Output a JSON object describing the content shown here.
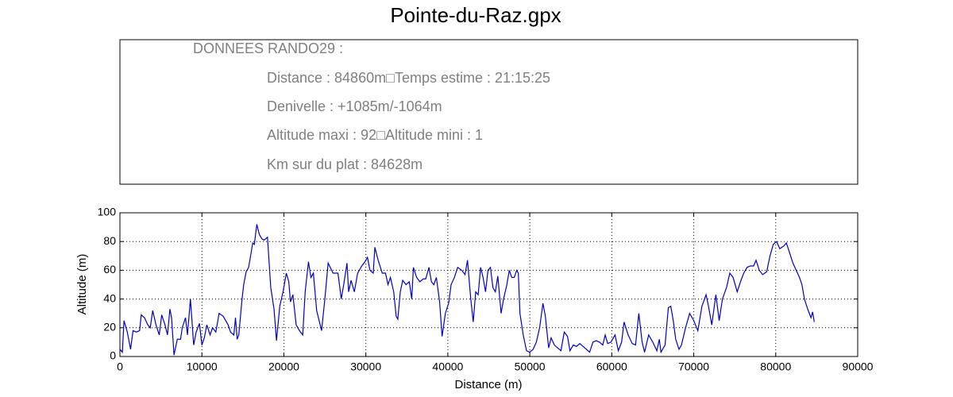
{
  "info_box": {
    "heading": "DONNEES RANDO29  :",
    "lines": [
      "Distance : 84860m□Temps estime : 21:15:25",
      "Denivelle : +1085m/-1064m",
      "Altitude maxi : 92□Altitude mini : 1",
      "Km sur du plat : 84628m"
    ]
  },
  "chart_data": {
    "type": "line",
    "title": "Pointe-du-Raz.gpx",
    "x_label": "Distance (m)",
    "y_label": "Altitude (m)",
    "color": "#0000cc",
    "grid": true,
    "xlim": [
      0,
      90000
    ],
    "xticks": [
      0,
      10000,
      20000,
      30000,
      40000,
      50000,
      60000,
      70000,
      80000,
      90000
    ],
    "ylim": [
      0,
      100
    ],
    "yticks": [
      0,
      20,
      40,
      60,
      80,
      100
    ],
    "x": [
      0,
      300,
      500,
      900,
      1300,
      1600,
      2000,
      2400,
      2600,
      3000,
      3400,
      3700,
      4000,
      4400,
      4800,
      5100,
      5500,
      5800,
      6100,
      6300,
      6600,
      7000,
      7400,
      7600,
      8000,
      8240,
      8600,
      9000,
      9300,
      9700,
      10000,
      10300,
      10600,
      11000,
      11300,
      11700,
      12100,
      12600,
      13200,
      13500,
      13900,
      14100,
      14300,
      14500,
      14900,
      15100,
      15400,
      15700,
      16000,
      16200,
      16400,
      16700,
      17000,
      17300,
      17600,
      18000,
      18400,
      18800,
      19100,
      19500,
      19900,
      20300,
      20600,
      20800,
      21100,
      21500,
      21900,
      22300,
      22600,
      23000,
      23300,
      23600,
      24000,
      24300,
      24600,
      25000,
      25400,
      26000,
      26600,
      27000,
      27300,
      27700,
      27900,
      28200,
      28600,
      29000,
      29500,
      29900,
      30200,
      30500,
      30900,
      31100,
      31500,
      32000,
      32400,
      32700,
      33000,
      33400,
      33700,
      33900,
      34200,
      34500,
      34900,
      35300,
      35600,
      35800,
      36200,
      36600,
      37000,
      37300,
      37700,
      38000,
      38300,
      38600,
      39000,
      39300,
      39700,
      40100,
      40400,
      40800,
      41200,
      41700,
      42100,
      42400,
      42800,
      43100,
      43400,
      43700,
      44000,
      44300,
      44600,
      44900,
      45200,
      45500,
      45800,
      46100,
      46500,
      46800,
      47200,
      47500,
      47800,
      48100,
      48400,
      48600,
      48800,
      49200,
      49600,
      50000,
      50400,
      50800,
      51200,
      51600,
      51900,
      52300,
      52600,
      53000,
      53400,
      53800,
      54200,
      54600,
      54900,
      55300,
      55700,
      56100,
      56500,
      56900,
      57300,
      57700,
      58100,
      58500,
      58900,
      59200,
      59500,
      59900,
      60400,
      60800,
      61200,
      61500,
      62000,
      62500,
      62900,
      63300,
      63700,
      64000,
      64500,
      65000,
      65500,
      65800,
      66000,
      66500,
      66900,
      67200,
      67500,
      67800,
      68200,
      68500,
      69000,
      69500,
      70000,
      70500,
      71000,
      71500,
      71800,
      72200,
      72700,
      73100,
      73500,
      74000,
      74400,
      74800,
      75300,
      75700,
      76100,
      76500,
      76900,
      77300,
      77600,
      78000,
      78400,
      78900,
      79300,
      79700,
      80100,
      80500,
      81000,
      81300,
      81700,
      82100,
      82500,
      82900,
      83200,
      83500,
      83900,
      84300,
      84500,
      84700
    ],
    "values": [
      5,
      3,
      25,
      17,
      5,
      18,
      17,
      18,
      29,
      27,
      22,
      20,
      32,
      22,
      15,
      29,
      22,
      15,
      33,
      27,
      1,
      12,
      12,
      20,
      27,
      15,
      40,
      8,
      17,
      23,
      8,
      13,
      22,
      15,
      20,
      17,
      30,
      28,
      22,
      17,
      15,
      27,
      12,
      15,
      40,
      50,
      59,
      62,
      72,
      79,
      78,
      92,
      85,
      82,
      81,
      83,
      48,
      33,
      11,
      35,
      45,
      58,
      52,
      38,
      43,
      22,
      18,
      15,
      45,
      66,
      55,
      58,
      32,
      25,
      18,
      40,
      65,
      58,
      58,
      40,
      50,
      65,
      45,
      53,
      45,
      58,
      63,
      66,
      69,
      60,
      58,
      76,
      67,
      58,
      58,
      50,
      55,
      45,
      28,
      26,
      45,
      53,
      50,
      52,
      40,
      62,
      55,
      52,
      54,
      54,
      62,
      52,
      50,
      55,
      38,
      14,
      30,
      37,
      50,
      55,
      62,
      60,
      57,
      67,
      40,
      24,
      45,
      43,
      62,
      55,
      45,
      60,
      62,
      48,
      45,
      56,
      30,
      40,
      50,
      60,
      55,
      55,
      60,
      58,
      30,
      15,
      4,
      3,
      5,
      10,
      20,
      37,
      28,
      6,
      13,
      8,
      6,
      4,
      17,
      14,
      4,
      8,
      7,
      9,
      7,
      5,
      3,
      10,
      11,
      10,
      8,
      15,
      9,
      10,
      15,
      4,
      10,
      24,
      15,
      9,
      8,
      30,
      10,
      3,
      15,
      10,
      4,
      12,
      3,
      8,
      34,
      35,
      25,
      12,
      5,
      8,
      20,
      30,
      25,
      18,
      35,
      43,
      35,
      22,
      43,
      25,
      40,
      48,
      58,
      55,
      45,
      52,
      58,
      62,
      63,
      63,
      67,
      60,
      57,
      59,
      70,
      78,
      80,
      75,
      77,
      79,
      72,
      65,
      60,
      55,
      50,
      40,
      33,
      27,
      31,
      24
    ]
  }
}
